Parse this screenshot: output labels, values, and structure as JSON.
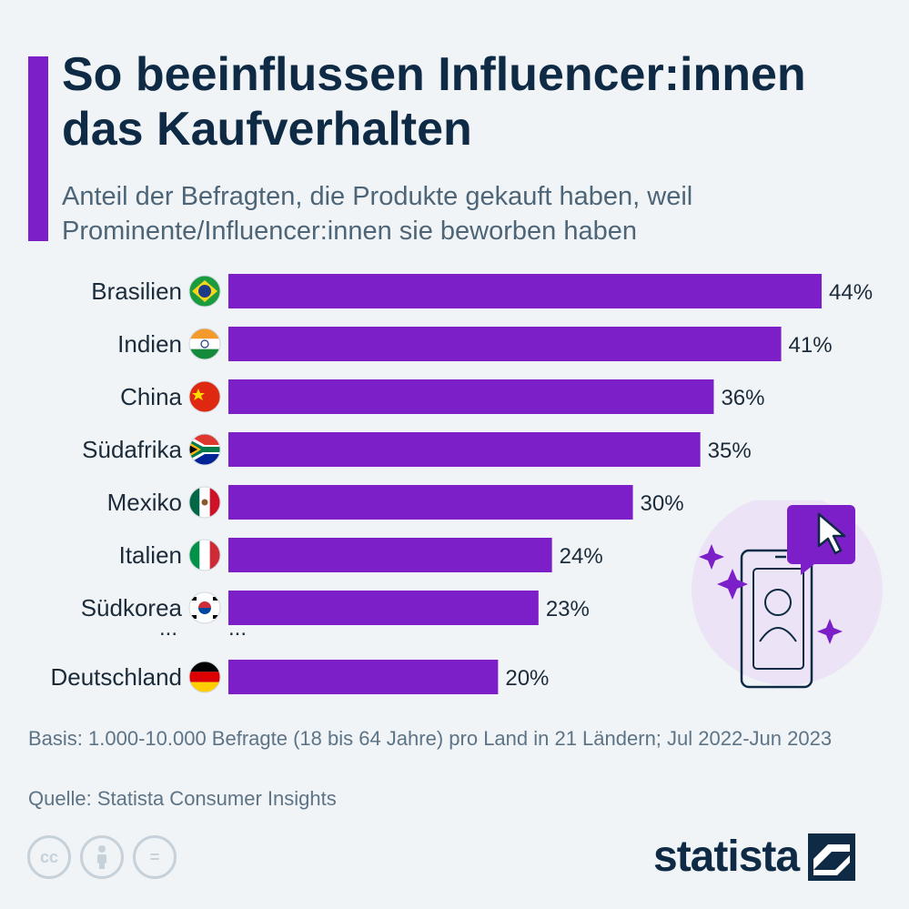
{
  "header": {
    "title": "So beeinflussen Influencer:innen das Kaufverhalten",
    "subtitle": "Anteil der Befragten, die Produkte gekauft haben, weil Prominente/Influencer:innen sie beworben haben"
  },
  "chart_data": {
    "type": "bar",
    "orientation": "horizontal",
    "categories": [
      "Brasilien",
      "Indien",
      "China",
      "Südafrika",
      "Mexiko",
      "Italien",
      "Südkorea",
      "Deutschland"
    ],
    "values": [
      44,
      41,
      36,
      35,
      30,
      24,
      23,
      20
    ],
    "value_labels": [
      "44%",
      "41%",
      "36%",
      "35%",
      "30%",
      "24%",
      "23%",
      "20%"
    ],
    "flag_icons": [
      "flag-brazil-icon",
      "flag-india-icon",
      "flag-china-icon",
      "flag-south-africa-icon",
      "flag-mexico-icon",
      "flag-italy-icon",
      "flag-south-korea-icon",
      "flag-germany-icon"
    ],
    "gap_marker": {
      "after_index": 6,
      "label_left": "...",
      "label_right": "..."
    },
    "bar_color": "#7c1fc8",
    "grid": false
  },
  "footer": {
    "basis": "Basis: 1.000-10.000 Befragte (18 bis 64 Jahre) pro Land in 21 Ländern; Jul 2022-Jun 2023",
    "source": "Quelle: Statista Consumer Insights"
  },
  "license_icons": [
    "cc-icon",
    "attribution-icon",
    "no-derivatives-icon"
  ],
  "license_glyphs": {
    "cc": "cc",
    "nd": "="
  },
  "brand": {
    "name": "statista"
  },
  "colors": {
    "accent": "#7c1fc8",
    "title": "#0f2a44",
    "text": "#4e6577",
    "background": "#f0f4f7"
  }
}
